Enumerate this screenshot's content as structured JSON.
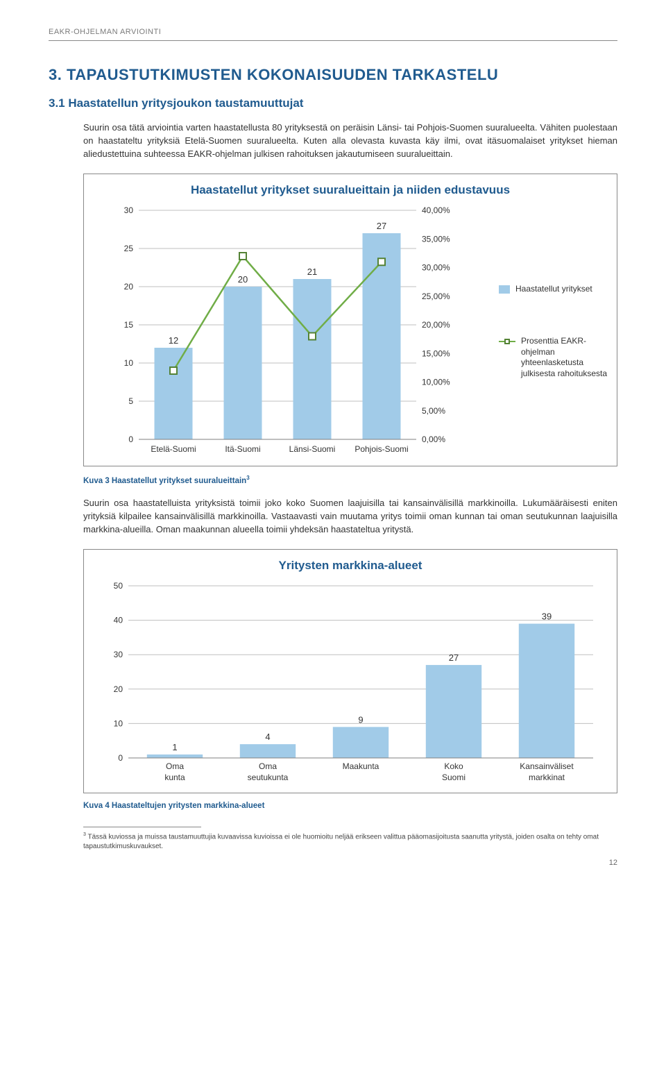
{
  "header": "EAKR-OHJELMAN ARVIOINTI",
  "section_number_title": "3.   TAPAUSTUTKIMUSTEN KOKONAISUUDEN TARKASTELU",
  "subsection_title": "3.1 Haastatellun yritysjoukon taustamuuttujat",
  "para1": "Suurin osa tätä arviointia varten haastatellusta 80 yrityksestä on peräisin Länsi- tai Pohjois-Suomen suuralueelta. Vähiten puolestaan on haastateltu yrityksiä Etelä-Suomen suuralueelta. Kuten alla olevasta kuvasta käy ilmi, ovat itäsuomalaiset yritykset hieman aliedustettuina suhteessa EAKR-ohjelman julkisen rahoituksen jakautumiseen suuralueittain.",
  "chart1": {
    "title": "Haastatellut yritykset suuralueittain ja niiden edustavuus",
    "type": "bar+line",
    "categories": [
      "Etelä-Suomi",
      "Itä-Suomi",
      "Länsi-Suomi",
      "Pohjois-Suomi"
    ],
    "bar_values": [
      12,
      20,
      21,
      27
    ],
    "line_values_pct": [
      12.0,
      32.0,
      18.0,
      31.0
    ],
    "bar_color": "#a1cbe8",
    "line_color": "#70ad47",
    "marker_border": "#548235",
    "y1_min": 0,
    "y1_max": 30,
    "y1_step": 5,
    "y2_min": 0,
    "y2_max": 40,
    "y2_step": 5,
    "y2_tick_labels": [
      "0,00%",
      "5,00%",
      "10,00%",
      "15,00%",
      "20,00%",
      "25,00%",
      "30,00%",
      "35,00%",
      "40,00%"
    ],
    "legend1": "Haastatellut yritykset",
    "legend2": "Prosenttia EAKR-ohjelman yhteenlasketusta julkisesta rahoituksesta",
    "grid_color": "#bfbfbf",
    "axis_color": "#7f7f7f",
    "font_size_axis": 12,
    "font_size_datalabel": 13
  },
  "caption1": "Kuva 3 Haastatellut yritykset suuralueittain",
  "caption1_sup": "3",
  "para2": "Suurin osa haastatelluista yrityksistä toimii joko koko Suomen laajuisilla tai kansainvälisillä markkinoilla. Lukumääräisesti eniten yrityksiä kilpailee kansainvälisillä markkinoilla. Vastaavasti vain muutama yritys toimii oman kunnan tai oman seutukunnan laajuisilla markkina-alueilla. Oman maakunnan alueella toimii yhdeksän haastateltua yritystä.",
  "chart2": {
    "title": "Yritysten markkina-alueet",
    "type": "bar",
    "categories": [
      "Oma kunta",
      "Oma seutukunta",
      "Maakunta",
      "Koko Suomi",
      "Kansainväliset markkinat"
    ],
    "values": [
      1,
      4,
      9,
      27,
      39
    ],
    "bar_color": "#a1cbe8",
    "y_min": 0,
    "y_max": 50,
    "y_step": 10,
    "grid_color": "#bfbfbf",
    "axis_color": "#7f7f7f"
  },
  "caption2": "Kuva 4 Haastateltujen yritysten markkina-alueet",
  "footnote_marker": "3",
  "footnote_text": " Tässä kuviossa ja muissa taustamuuttujia kuvaavissa kuvioissa ei ole huomioitu neljää erikseen valittua pääomasijoitusta saanutta yritystä, joiden osalta on tehty omat tapaustutkimuskuvaukset.",
  "page_number": "12"
}
